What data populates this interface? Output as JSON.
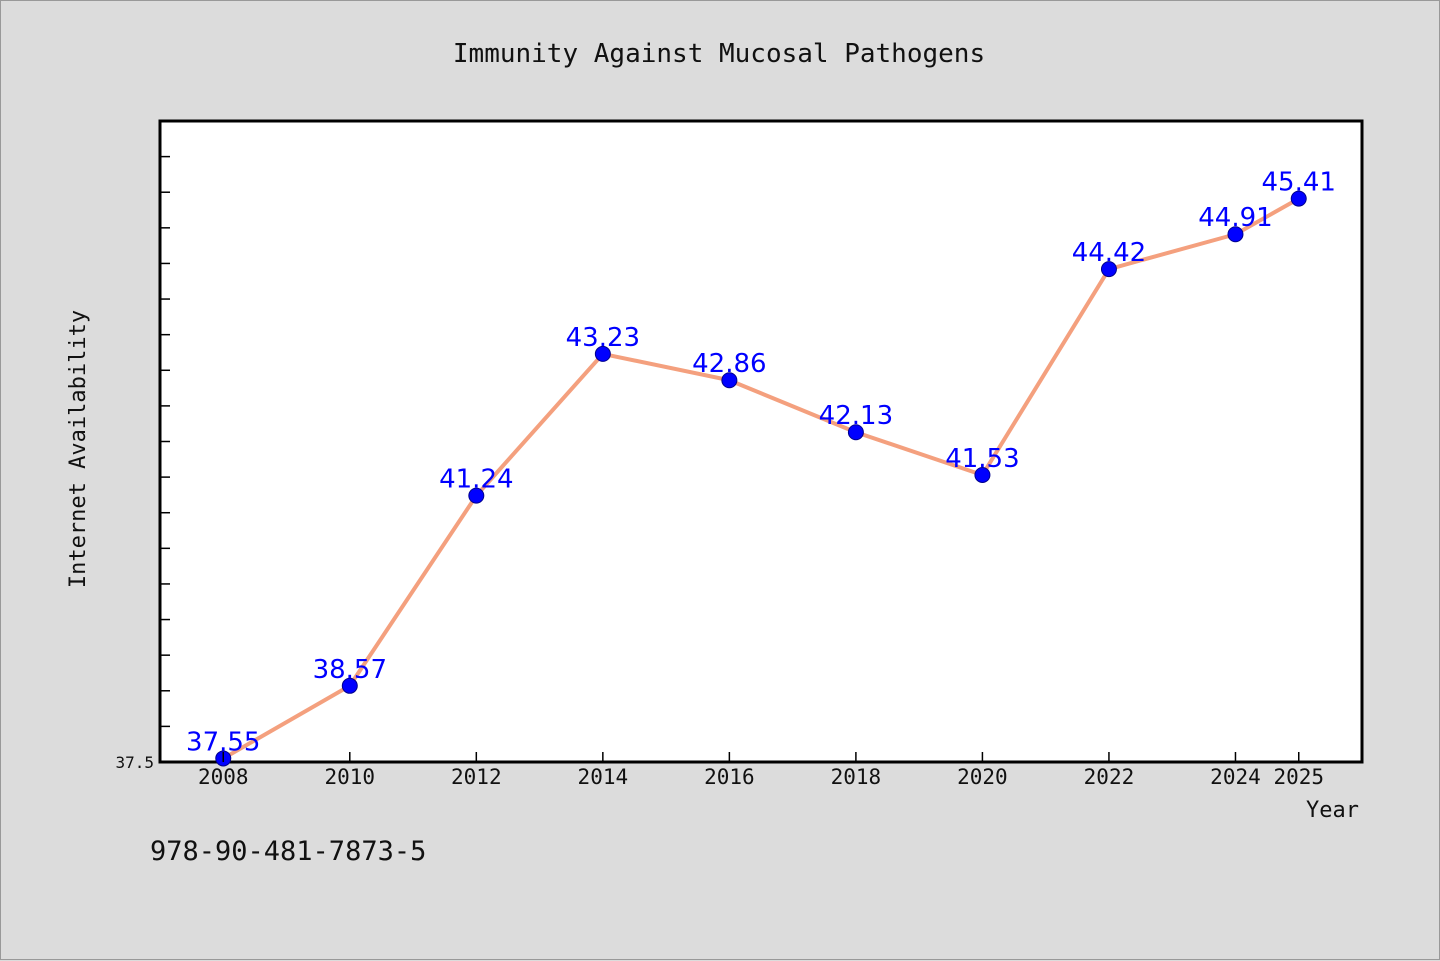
{
  "chart_data": {
    "type": "line",
    "title": "Immunity Against Mucosal Pathogens",
    "xlabel": "Year",
    "ylabel": "Internet Availability",
    "x": [
      "2008",
      "2010",
      "2012",
      "2014",
      "2016",
      "2018",
      "2020",
      "2022",
      "2024",
      "2025"
    ],
    "series": [
      {
        "values": [
          37.55,
          38.57,
          41.24,
          43.23,
          42.86,
          42.13,
          41.53,
          44.42,
          44.91,
          45.41
        ]
      }
    ],
    "ytick_labels": [
      "37.5"
    ],
    "ylim": [
      37.5,
      46.5
    ],
    "grid": false,
    "colors": {
      "line": "#f4a07e",
      "marker": "#0000ff",
      "data_label": "#0000ff",
      "plot_background": "#ffffff",
      "figure_background": "#dcdcdc"
    }
  },
  "footer": {
    "isbn": "978-90-481-7873-5"
  }
}
